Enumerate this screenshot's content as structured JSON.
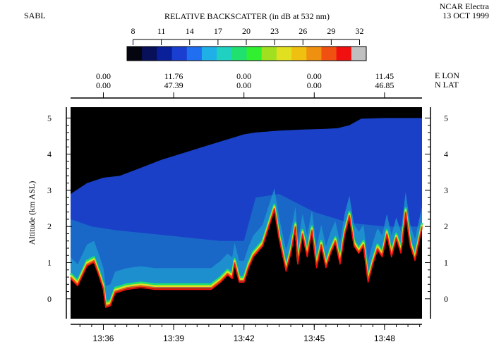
{
  "header": {
    "left_label": "SABL",
    "title": "RELATIVE BACKSCATTER (in dB at 532 nm)",
    "platform": "NCAR Electra",
    "date": "13 OCT 1999"
  },
  "colors": {
    "colorbar": [
      "#050510",
      "#08105a",
      "#0a1f9a",
      "#1a3fd0",
      "#1f6ff0",
      "#1fb0e8",
      "#20d0c0",
      "#20e070",
      "#30f030",
      "#a0e020",
      "#e0e020",
      "#f0c010",
      "#f09010",
      "#f05010",
      "#f01010",
      "#c0c0c0"
    ],
    "background_echo": "#000000",
    "haze": "#1a40c8",
    "boundary_layer": "#1a70c8",
    "surface_return": "#20a0d0"
  },
  "chart_data": {
    "type": "heatmap",
    "title": "RELATIVE BACKSCATTER (in dB at 532 nm)",
    "colorbar": {
      "ticks": [
        "8",
        "11",
        "14",
        "17",
        "20",
        "23",
        "26",
        "29",
        "32"
      ],
      "min": 8,
      "max": 32
    },
    "position_axis": {
      "label_lon": "E LON",
      "label_lat": "N LAT",
      "lon": [
        "0.00",
        "11.76",
        "0.00",
        "0.00",
        "11.45"
      ],
      "lat": [
        "0.00",
        "47.39",
        "0.00",
        "0.00",
        "46.85"
      ]
    },
    "xlabel": "",
    "x_tick_labels": [
      "13:36",
      "13:39",
      "13:42",
      "13:45",
      "13:48"
    ],
    "x_tick_minutes": [
      36,
      39,
      42,
      45,
      48
    ],
    "xlim_minutes": [
      34.6,
      49.6
    ],
    "ylabel": "Altitude (km ASL)",
    "y_ticks": [
      0,
      1,
      2,
      3,
      4,
      5
    ],
    "y_tick_labels": [
      "0",
      "1",
      "2",
      "3",
      "4",
      "5"
    ],
    "ylim": [
      -0.55,
      5.3
    ],
    "surface_km": {
      "minutes": [
        34.6,
        34.9,
        35.3,
        35.6,
        35.8,
        36.0,
        36.1,
        36.3,
        36.5,
        37.0,
        37.6,
        38.2,
        38.8,
        39.4,
        40.0,
        40.6,
        41.0,
        41.3,
        41.5,
        41.6,
        41.8,
        42.0,
        42.2,
        42.4,
        42.8,
        43.2,
        43.3,
        43.5,
        43.8,
        44.0,
        44.2,
        44.3,
        44.5,
        44.7,
        44.9,
        45.1,
        45.3,
        45.5,
        45.7,
        45.9,
        46.1,
        46.3,
        46.5,
        46.7,
        46.9,
        47.1,
        47.3,
        47.5,
        47.7,
        47.9,
        48.1,
        48.3,
        48.5,
        48.7,
        48.9,
        49.1,
        49.3,
        49.6
      ],
      "altitude": [
        0.6,
        0.4,
        0.95,
        1.05,
        0.7,
        0.3,
        -0.2,
        -0.15,
        0.2,
        0.3,
        0.35,
        0.3,
        0.3,
        0.3,
        0.3,
        0.3,
        0.5,
        0.7,
        0.6,
        1.0,
        0.5,
        0.5,
        0.9,
        1.2,
        1.5,
        2.3,
        2.5,
        1.7,
        0.8,
        1.3,
        2.0,
        1.0,
        1.8,
        1.2,
        1.9,
        0.9,
        1.5,
        0.9,
        1.3,
        1.6,
        1.0,
        1.8,
        2.3,
        1.5,
        1.3,
        1.5,
        0.5,
        1.0,
        1.4,
        1.2,
        1.8,
        1.2,
        1.7,
        1.3,
        2.4,
        1.5,
        1.1,
        2.0
      ]
    },
    "aerosol_top_km": {
      "minutes": [
        34.6,
        35.3,
        36.0,
        36.7,
        37.5,
        38.5,
        39.5,
        40.5,
        41.5,
        42.0,
        42.5,
        43.5,
        44.5,
        45.5,
        46.0,
        46.5,
        47.0,
        48.0,
        49.0,
        49.6
      ],
      "altitude": [
        2.9,
        3.2,
        3.35,
        3.4,
        3.6,
        3.85,
        4.05,
        4.25,
        4.45,
        4.55,
        4.6,
        4.65,
        4.68,
        4.7,
        4.72,
        4.8,
        4.98,
        5.0,
        5.0,
        5.0
      ]
    },
    "boundary_layer_top_km": {
      "minutes": [
        34.6,
        35.5,
        36.5,
        38.0,
        39.5,
        41.0,
        42.0,
        42.5,
        43.5,
        45.0,
        46.5,
        48.0,
        49.6
      ],
      "altitude": [
        2.2,
        2.0,
        1.9,
        1.8,
        1.7,
        1.6,
        1.6,
        2.8,
        2.9,
        2.4,
        2.1,
        2.0,
        2.0
      ]
    },
    "grid": false
  }
}
